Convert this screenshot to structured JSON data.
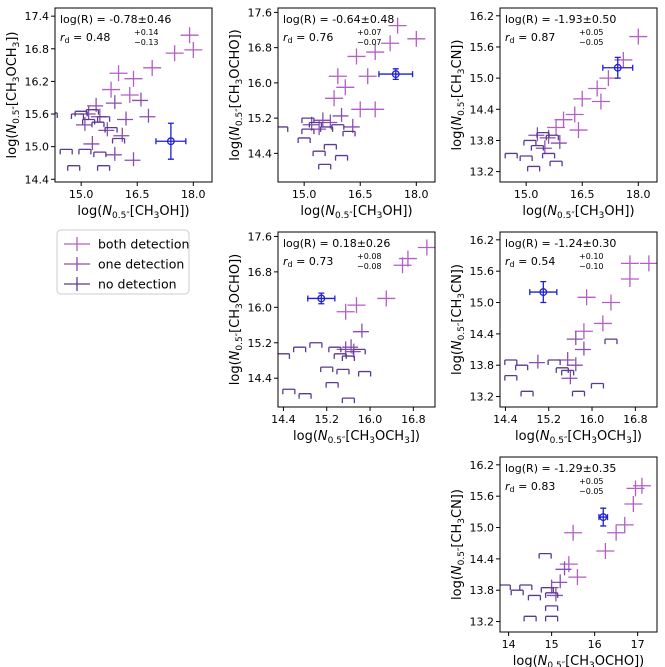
{
  "colors": {
    "both": "#b35fc4",
    "one": "#8a4fb0",
    "none": "#5a3a92",
    "highlight": "#1f1fd6"
  },
  "legend": {
    "location": "left",
    "entries": [
      {
        "key": "both",
        "label": "both detection"
      },
      {
        "key": "one",
        "label": "one detection"
      },
      {
        "key": "none",
        "label": "no detection"
      }
    ]
  },
  "chart_data": [
    {
      "id": "ch3och3_vs_ch3oh",
      "type": "scatter",
      "xlabel": "log(N0.5\"[CH3OH])",
      "ylabel": "log(N0.5\"[CH3OCH3])",
      "xlim": [
        14.3,
        18.5
      ],
      "ylim": [
        14.35,
        17.55
      ],
      "xticks": [
        15.0,
        16.5,
        18.0
      ],
      "xtick_labels": [
        "15.0",
        "16.5",
        "18.0"
      ],
      "yticks": [
        14.4,
        15.0,
        15.6,
        16.2,
        16.8,
        17.4
      ],
      "ytick_labels": [
        "14.4",
        "15.0",
        "15.6",
        "16.2",
        "16.8",
        "17.4"
      ],
      "stat_line": "log(R) = -0.78±0.46",
      "rd_value": "0.48",
      "rd_up": "+0.14",
      "rd_down": "−0.13",
      "highlight": {
        "x": 17.4,
        "y": 15.1,
        "xerr": 0.4,
        "yerr": 0.33
      },
      "points": [
        {
          "x": 17.9,
          "y": 17.05,
          "cat": "both"
        },
        {
          "x": 18.0,
          "y": 16.78,
          "cat": "both"
        },
        {
          "x": 17.5,
          "y": 16.72,
          "cat": "both"
        },
        {
          "x": 16.9,
          "y": 16.45,
          "cat": "both"
        },
        {
          "x": 16.4,
          "y": 16.25,
          "cat": "both"
        },
        {
          "x": 16.0,
          "y": 16.35,
          "cat": "both"
        },
        {
          "x": 15.8,
          "y": 16.05,
          "cat": "both"
        },
        {
          "x": 16.3,
          "y": 15.95,
          "cat": "both"
        },
        {
          "x": 15.9,
          "y": 15.8,
          "cat": "one"
        },
        {
          "x": 16.6,
          "y": 15.85,
          "cat": "one"
        },
        {
          "x": 15.4,
          "y": 15.75,
          "cat": "one"
        },
        {
          "x": 15.2,
          "y": 15.6,
          "cat": "one"
        },
        {
          "x": 15.5,
          "y": 15.55,
          "cat": "one"
        },
        {
          "x": 16.2,
          "y": 15.5,
          "cat": "one"
        },
        {
          "x": 16.8,
          "y": 15.55,
          "cat": "one"
        },
        {
          "x": 15.1,
          "y": 15.4,
          "cat": "one"
        },
        {
          "x": 15.7,
          "y": 15.3,
          "cat": "one"
        },
        {
          "x": 16.1,
          "y": 15.2,
          "cat": "one"
        },
        {
          "x": 15.3,
          "y": 15.05,
          "cat": "one"
        },
        {
          "x": 15.9,
          "y": 14.85,
          "cat": "one"
        },
        {
          "x": 16.4,
          "y": 14.75,
          "cat": "one"
        },
        {
          "x": 14.9,
          "y": 15.6,
          "cat": "none"
        },
        {
          "x": 15.0,
          "y": 15.65,
          "cat": "none"
        },
        {
          "x": 15.2,
          "y": 15.5,
          "cat": "none"
        },
        {
          "x": 15.3,
          "y": 15.68,
          "cat": "none"
        },
        {
          "x": 15.45,
          "y": 15.45,
          "cat": "none"
        },
        {
          "x": 15.6,
          "y": 15.55,
          "cat": "none"
        },
        {
          "x": 15.8,
          "y": 15.35,
          "cat": "none"
        },
        {
          "x": 16.0,
          "y": 15.15,
          "cat": "none"
        },
        {
          "x": 15.1,
          "y": 14.95,
          "cat": "none"
        },
        {
          "x": 15.5,
          "y": 14.9,
          "cat": "none"
        },
        {
          "x": 14.6,
          "y": 14.95,
          "cat": "none"
        },
        {
          "x": 14.8,
          "y": 14.65,
          "cat": "none"
        },
        {
          "x": 15.6,
          "y": 14.65,
          "cat": "none"
        },
        {
          "x": 14.2,
          "y": 15.62,
          "cat": "none"
        }
      ]
    },
    {
      "id": "ch3ocho_vs_ch3oh",
      "type": "scatter",
      "xlabel": "log(N0.5\"[CH3OH])",
      "ylabel": "log(N0.5\"[CH3OCHO])",
      "xlim": [
        14.3,
        18.5
      ],
      "ylim": [
        13.75,
        17.7
      ],
      "xticks": [
        15.0,
        16.5,
        18.0
      ],
      "xtick_labels": [
        "15.0",
        "16.5",
        "18.0"
      ],
      "yticks": [
        14.4,
        15.2,
        16.0,
        16.8,
        17.6
      ],
      "ytick_labels": [
        "14.4",
        "15.2",
        "16.0",
        "16.8",
        "17.6"
      ],
      "stat_line": "log(R) = -0.64±0.48",
      "rd_value": "0.76",
      "rd_up": "+0.07",
      "rd_down": "−0.07",
      "highlight": {
        "x": 17.45,
        "y": 16.2,
        "xerr": 0.45,
        "yerr": 0.12
      },
      "points": [
        {
          "x": 17.5,
          "y": 17.3,
          "cat": "both"
        },
        {
          "x": 18.0,
          "y": 17.0,
          "cat": "both"
        },
        {
          "x": 17.3,
          "y": 16.9,
          "cat": "both"
        },
        {
          "x": 16.9,
          "y": 16.7,
          "cat": "both"
        },
        {
          "x": 16.4,
          "y": 16.6,
          "cat": "both"
        },
        {
          "x": 15.9,
          "y": 16.15,
          "cat": "both"
        },
        {
          "x": 16.7,
          "y": 16.15,
          "cat": "both"
        },
        {
          "x": 16.1,
          "y": 15.9,
          "cat": "both"
        },
        {
          "x": 15.8,
          "y": 15.65,
          "cat": "both"
        },
        {
          "x": 16.5,
          "y": 15.4,
          "cat": "both"
        },
        {
          "x": 16.9,
          "y": 15.4,
          "cat": "both"
        },
        {
          "x": 16.0,
          "y": 15.25,
          "cat": "one"
        },
        {
          "x": 15.5,
          "y": 15.15,
          "cat": "one"
        },
        {
          "x": 15.2,
          "y": 15.05,
          "cat": "one"
        },
        {
          "x": 15.7,
          "y": 15.1,
          "cat": "one"
        },
        {
          "x": 16.3,
          "y": 15.0,
          "cat": "one"
        },
        {
          "x": 15.4,
          "y": 14.95,
          "cat": "one"
        },
        {
          "x": 15.1,
          "y": 15.2,
          "cat": "none"
        },
        {
          "x": 15.3,
          "y": 15.1,
          "cat": "none"
        },
        {
          "x": 15.6,
          "y": 15.0,
          "cat": "none"
        },
        {
          "x": 15.9,
          "y": 15.05,
          "cat": "none"
        },
        {
          "x": 16.2,
          "y": 14.9,
          "cat": "none"
        },
        {
          "x": 15.0,
          "y": 14.75,
          "cat": "none"
        },
        {
          "x": 15.7,
          "y": 14.6,
          "cat": "none"
        },
        {
          "x": 16.0,
          "y": 14.35,
          "cat": "none"
        },
        {
          "x": 15.4,
          "y": 14.45,
          "cat": "none"
        },
        {
          "x": 14.4,
          "y": 15.0,
          "cat": "none"
        },
        {
          "x": 15.1,
          "y": 14.95,
          "cat": "none"
        },
        {
          "x": 15.55,
          "y": 14.15,
          "cat": "none"
        }
      ]
    },
    {
      "id": "ch3cn_vs_ch3oh",
      "type": "scatter",
      "xlabel": "log(N0.5\"[CH3OH])",
      "ylabel": "log(N0.5\"[CH3CN])",
      "xlim": [
        14.3,
        18.5
      ],
      "ylim": [
        13.0,
        16.35
      ],
      "xticks": [
        15.0,
        16.5,
        18.0
      ],
      "xtick_labels": [
        "15.0",
        "16.5",
        "18.0"
      ],
      "yticks": [
        13.2,
        13.8,
        14.4,
        15.0,
        15.6,
        16.2
      ],
      "ytick_labels": [
        "13.2",
        "13.8",
        "14.4",
        "15.0",
        "15.6",
        "16.2"
      ],
      "stat_line": "log(R) = -1.93±0.50",
      "rd_value": "0.87",
      "rd_up": "+0.05",
      "rd_down": "−0.05",
      "highlight": {
        "x": 17.45,
        "y": 15.2,
        "xerr": 0.4,
        "yerr": 0.2
      },
      "points": [
        {
          "x": 18.0,
          "y": 15.8,
          "cat": "both"
        },
        {
          "x": 17.6,
          "y": 15.35,
          "cat": "both"
        },
        {
          "x": 17.2,
          "y": 15.0,
          "cat": "both"
        },
        {
          "x": 16.9,
          "y": 14.8,
          "cat": "both"
        },
        {
          "x": 17.0,
          "y": 14.55,
          "cat": "both"
        },
        {
          "x": 16.5,
          "y": 14.6,
          "cat": "both"
        },
        {
          "x": 16.3,
          "y": 14.3,
          "cat": "both"
        },
        {
          "x": 16.0,
          "y": 14.2,
          "cat": "both"
        },
        {
          "x": 15.8,
          "y": 14.05,
          "cat": "both"
        },
        {
          "x": 16.4,
          "y": 14.0,
          "cat": "both"
        },
        {
          "x": 15.6,
          "y": 13.85,
          "cat": "one"
        },
        {
          "x": 15.9,
          "y": 13.75,
          "cat": "one"
        },
        {
          "x": 15.3,
          "y": 13.9,
          "cat": "one"
        },
        {
          "x": 15.5,
          "y": 13.65,
          "cat": "one"
        },
        {
          "x": 15.1,
          "y": 13.8,
          "cat": "none"
        },
        {
          "x": 15.3,
          "y": 13.7,
          "cat": "none"
        },
        {
          "x": 15.6,
          "y": 13.55,
          "cat": "none"
        },
        {
          "x": 15.0,
          "y": 13.5,
          "cat": "none"
        },
        {
          "x": 15.8,
          "y": 13.4,
          "cat": "none"
        },
        {
          "x": 15.2,
          "y": 13.3,
          "cat": "none"
        },
        {
          "x": 14.6,
          "y": 13.55,
          "cat": "none"
        },
        {
          "x": 15.7,
          "y": 13.9,
          "cat": "none"
        },
        {
          "x": 15.45,
          "y": 13.95,
          "cat": "none"
        }
      ]
    },
    {
      "id": "ch3ocho_vs_ch3och3",
      "type": "scatter",
      "xlabel": "log(N0.5\"[CH3OCH3])",
      "ylabel": "log(N0.5\"[CH3OCHO])",
      "xlim": [
        14.3,
        17.2
      ],
      "ylim": [
        13.75,
        17.7
      ],
      "xticks": [
        14.4,
        15.2,
        16.0,
        16.8
      ],
      "xtick_labels": [
        "14.4",
        "15.2",
        "16.0",
        "16.8"
      ],
      "yticks": [
        14.4,
        15.2,
        16.0,
        16.8,
        17.6
      ],
      "ytick_labels": [
        "14.4",
        "15.2",
        "16.0",
        "16.8",
        "17.6"
      ],
      "stat_line": "log(R) = 0.18±0.26",
      "rd_value": "0.73",
      "rd_up": "+0.08",
      "rd_down": "−0.08",
      "highlight": {
        "x": 15.1,
        "y": 16.2,
        "xerr": 0.25,
        "yerr": 0.12
      },
      "points": [
        {
          "x": 17.05,
          "y": 17.35,
          "cat": "both"
        },
        {
          "x": 16.7,
          "y": 17.1,
          "cat": "both"
        },
        {
          "x": 16.6,
          "y": 16.95,
          "cat": "both"
        },
        {
          "x": 16.3,
          "y": 16.2,
          "cat": "both"
        },
        {
          "x": 15.75,
          "y": 16.05,
          "cat": "both"
        },
        {
          "x": 15.55,
          "y": 15.9,
          "cat": "both"
        },
        {
          "x": 15.85,
          "y": 15.45,
          "cat": "one"
        },
        {
          "x": 15.65,
          "y": 15.1,
          "cat": "one"
        },
        {
          "x": 15.55,
          "y": 15.05,
          "cat": "one"
        },
        {
          "x": 15.7,
          "y": 15.0,
          "cat": "one"
        },
        {
          "x": 15.45,
          "y": 14.95,
          "cat": "none"
        },
        {
          "x": 15.6,
          "y": 14.9,
          "cat": "none"
        },
        {
          "x": 15.8,
          "y": 15.05,
          "cat": "none"
        },
        {
          "x": 15.35,
          "y": 15.1,
          "cat": "none"
        },
        {
          "x": 15.0,
          "y": 15.2,
          "cat": "none"
        },
        {
          "x": 14.7,
          "y": 15.1,
          "cat": "none"
        },
        {
          "x": 14.4,
          "y": 14.95,
          "cat": "none"
        },
        {
          "x": 15.2,
          "y": 14.65,
          "cat": "none"
        },
        {
          "x": 15.5,
          "y": 14.6,
          "cat": "none"
        },
        {
          "x": 15.9,
          "y": 14.55,
          "cat": "none"
        },
        {
          "x": 14.5,
          "y": 14.15,
          "cat": "none"
        },
        {
          "x": 14.8,
          "y": 14.05,
          "cat": "none"
        },
        {
          "x": 15.3,
          "y": 14.3,
          "cat": "none"
        },
        {
          "x": 15.6,
          "y": 13.95,
          "cat": "none"
        }
      ]
    },
    {
      "id": "ch3cn_vs_ch3och3",
      "type": "scatter",
      "xlabel": "log(N0.5\"[CH3OCH3])",
      "ylabel": "log(N0.5\"[CH3CN])",
      "xlim": [
        14.3,
        17.2
      ],
      "ylim": [
        13.0,
        16.35
      ],
      "xticks": [
        14.4,
        15.2,
        16.0,
        16.8
      ],
      "xtick_labels": [
        "14.4",
        "15.2",
        "16.0",
        "16.8"
      ],
      "yticks": [
        13.2,
        13.8,
        14.4,
        15.0,
        15.6,
        16.2
      ],
      "ytick_labels": [
        "13.2",
        "13.8",
        "14.4",
        "15.0",
        "15.6",
        "16.2"
      ],
      "stat_line": "log(R) = -1.24±0.30",
      "rd_value": "0.54",
      "rd_up": "+0.10",
      "rd_down": "−0.10",
      "highlight": {
        "x": 15.1,
        "y": 15.2,
        "xerr": 0.25,
        "yerr": 0.2
      },
      "points": [
        {
          "x": 17.05,
          "y": 15.75,
          "cat": "both"
        },
        {
          "x": 16.7,
          "y": 15.75,
          "cat": "both"
        },
        {
          "x": 16.7,
          "y": 15.45,
          "cat": "both"
        },
        {
          "x": 16.35,
          "y": 15.0,
          "cat": "both"
        },
        {
          "x": 15.9,
          "y": 15.1,
          "cat": "both"
        },
        {
          "x": 16.2,
          "y": 14.6,
          "cat": "both"
        },
        {
          "x": 15.85,
          "y": 14.45,
          "cat": "both"
        },
        {
          "x": 15.7,
          "y": 14.3,
          "cat": "one"
        },
        {
          "x": 15.85,
          "y": 14.1,
          "cat": "one"
        },
        {
          "x": 15.55,
          "y": 13.9,
          "cat": "one"
        },
        {
          "x": 15.7,
          "y": 13.8,
          "cat": "one"
        },
        {
          "x": 15.0,
          "y": 13.85,
          "cat": "one"
        },
        {
          "x": 15.6,
          "y": 13.55,
          "cat": "one"
        },
        {
          "x": 15.45,
          "y": 13.75,
          "cat": "none"
        },
        {
          "x": 15.55,
          "y": 13.7,
          "cat": "none"
        },
        {
          "x": 15.3,
          "y": 13.9,
          "cat": "none"
        },
        {
          "x": 14.5,
          "y": 13.9,
          "cat": "none"
        },
        {
          "x": 14.7,
          "y": 13.8,
          "cat": "none"
        },
        {
          "x": 14.5,
          "y": 13.6,
          "cat": "none"
        },
        {
          "x": 14.8,
          "y": 13.3,
          "cat": "none"
        },
        {
          "x": 15.75,
          "y": 13.3,
          "cat": "none"
        },
        {
          "x": 16.1,
          "y": 13.45,
          "cat": "none"
        },
        {
          "x": 16.35,
          "y": 14.3,
          "cat": "none"
        }
      ]
    },
    {
      "id": "ch3cn_vs_ch3ocho",
      "type": "scatter",
      "xlabel": "log(N0.5\"[CH3OCHO])",
      "ylabel": "log(N0.5\"[CH3CN])",
      "xlim": [
        13.8,
        17.45
      ],
      "ylim": [
        13.0,
        16.35
      ],
      "xticks": [
        14,
        15,
        16,
        17
      ],
      "xtick_labels": [
        "14",
        "15",
        "16",
        "17"
      ],
      "yticks": [
        13.2,
        13.8,
        14.4,
        15.0,
        15.6,
        16.2
      ],
      "ytick_labels": [
        "13.2",
        "13.8",
        "14.4",
        "15.0",
        "15.6",
        "16.2"
      ],
      "stat_line": "log(R) = -1.29±0.35",
      "rd_value": "0.83",
      "rd_up": "+0.05",
      "rd_down": "−0.05",
      "highlight": {
        "x": 16.2,
        "y": 15.2,
        "xerr": 0.1,
        "yerr": 0.17
      },
      "points": [
        {
          "x": 17.1,
          "y": 15.8,
          "cat": "both"
        },
        {
          "x": 16.95,
          "y": 15.75,
          "cat": "both"
        },
        {
          "x": 16.9,
          "y": 15.45,
          "cat": "both"
        },
        {
          "x": 16.7,
          "y": 15.05,
          "cat": "both"
        },
        {
          "x": 16.5,
          "y": 14.9,
          "cat": "both"
        },
        {
          "x": 16.25,
          "y": 14.55,
          "cat": "both"
        },
        {
          "x": 15.5,
          "y": 14.9,
          "cat": "both"
        },
        {
          "x": 15.4,
          "y": 14.3,
          "cat": "both"
        },
        {
          "x": 15.6,
          "y": 14.05,
          "cat": "both"
        },
        {
          "x": 15.3,
          "y": 14.2,
          "cat": "one"
        },
        {
          "x": 15.2,
          "y": 13.95,
          "cat": "one"
        },
        {
          "x": 15.0,
          "y": 13.85,
          "cat": "one"
        },
        {
          "x": 15.1,
          "y": 13.7,
          "cat": "one"
        },
        {
          "x": 14.9,
          "y": 13.85,
          "cat": "none"
        },
        {
          "x": 15.0,
          "y": 13.75,
          "cat": "none"
        },
        {
          "x": 14.4,
          "y": 13.9,
          "cat": "none"
        },
        {
          "x": 14.2,
          "y": 13.8,
          "cat": "none"
        },
        {
          "x": 13.9,
          "y": 13.9,
          "cat": "none"
        },
        {
          "x": 14.6,
          "y": 13.7,
          "cat": "none"
        },
        {
          "x": 14.5,
          "y": 13.3,
          "cat": "none"
        },
        {
          "x": 15.0,
          "y": 13.5,
          "cat": "none"
        },
        {
          "x": 15.0,
          "y": 13.3,
          "cat": "none"
        },
        {
          "x": 14.85,
          "y": 14.5,
          "cat": "none"
        }
      ]
    }
  ]
}
